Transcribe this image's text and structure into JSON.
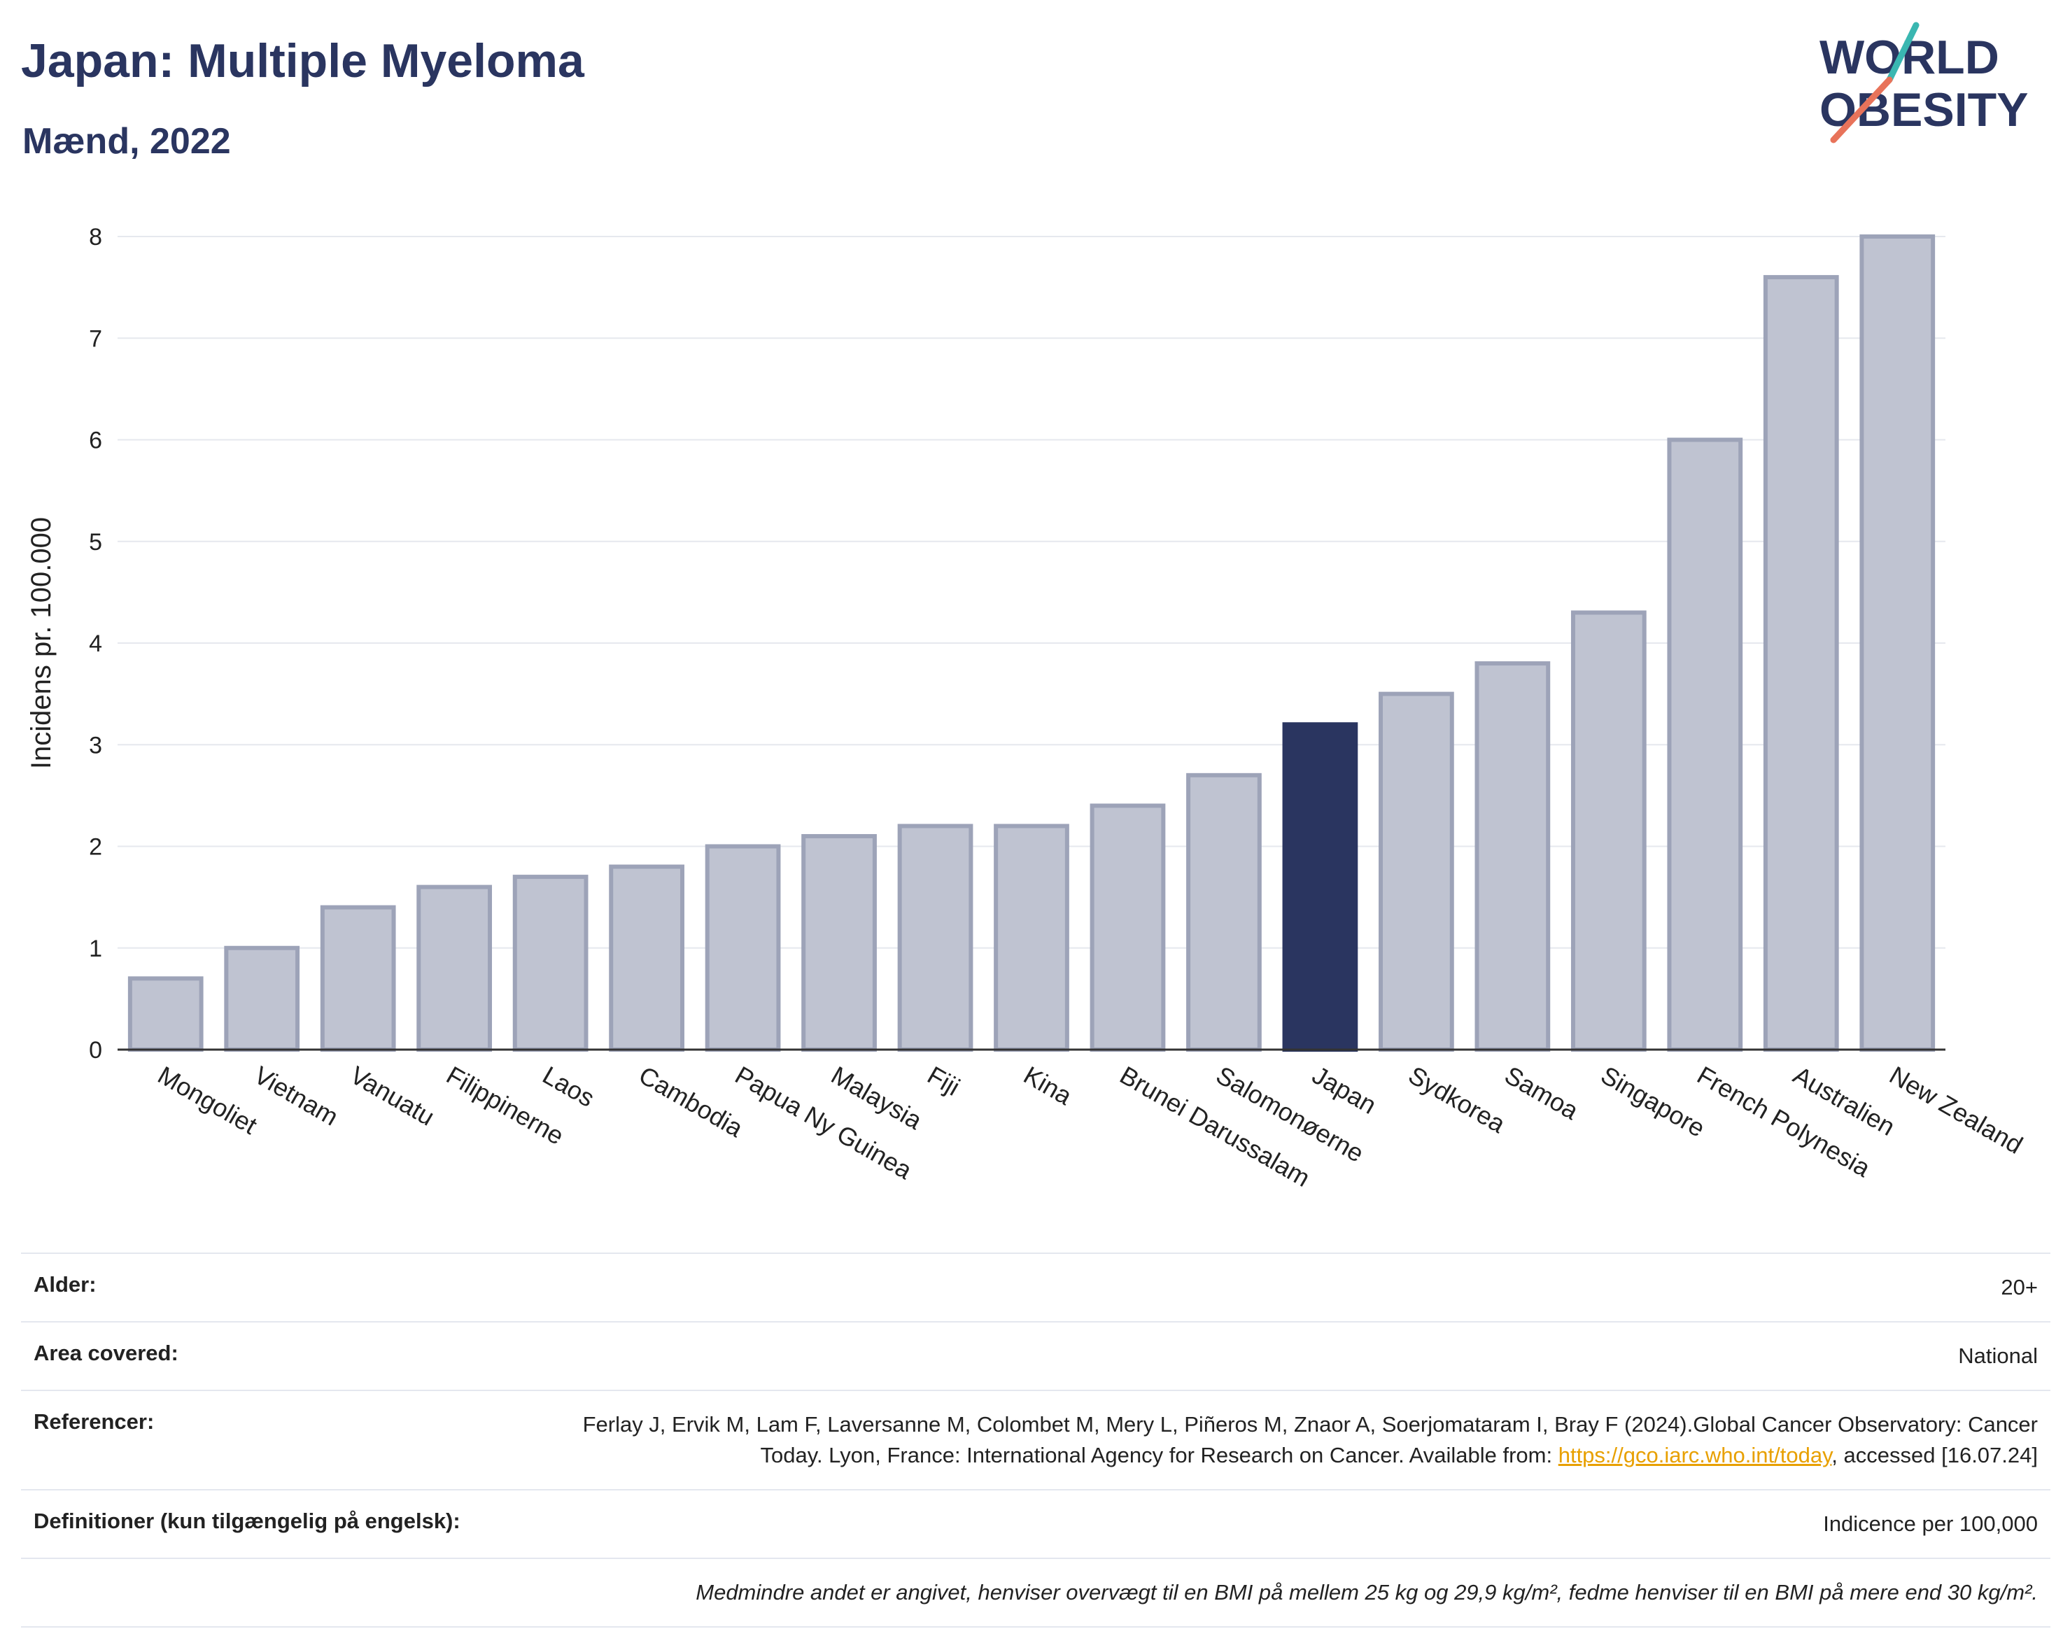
{
  "title": "Japan: Multiple Myeloma",
  "subtitle": "Mænd, 2022",
  "logo": {
    "line1": "WORLD",
    "line2": "OBESITY",
    "accent_colors": [
      "#3ab7b1",
      "#e8735a"
    ]
  },
  "chart_data": {
    "type": "bar",
    "ylabel": "Incidens pr. 100.000",
    "ylim": [
      0,
      8
    ],
    "yticks": [
      0,
      1,
      2,
      3,
      4,
      5,
      6,
      7,
      8
    ],
    "grid": true,
    "categories": [
      "Mongoliet",
      "Vietnam",
      "Vanuatu",
      "Filippinerne",
      "Laos",
      "Cambodia",
      "Papua Ny Guinea",
      "Malaysia",
      "Fiji",
      "Kina",
      "Brunei Darussalam",
      "Salomonøerne",
      "Japan",
      "Sydkorea",
      "Samoa",
      "Singapore",
      "French Polynesia",
      "Australien",
      "New Zealand"
    ],
    "values": [
      0.7,
      1.0,
      1.4,
      1.6,
      1.7,
      1.8,
      2.0,
      2.1,
      2.2,
      2.2,
      2.4,
      2.7,
      3.2,
      3.5,
      3.8,
      4.3,
      6.0,
      7.6,
      8.0
    ],
    "highlight": "Japan",
    "colors": {
      "bar": "#bfc3d1",
      "bar_edge": "#9da3b8",
      "highlight": "#2a3560"
    }
  },
  "info": {
    "age_label": "Alder:",
    "age_value": "20+",
    "area_label": "Area covered:",
    "area_value": "National",
    "refs_label": "Referencer:",
    "refs_text_1": "Ferlay J, Ervik M, Lam F, Laversanne M, Colombet M, Mery L, Piñeros M, Znaor A, Soerjomataram I, Bray F (2024).Global Cancer Observatory: Cancer Today. Lyon, France: International Agency for Research on Cancer. Available from: ",
    "refs_link": "https://gco.iarc.who.int/today",
    "refs_text_2": ", accessed [16.07.24]",
    "def_label": "Definitioner (kun tilgængelig på engelsk):",
    "def_value": "Indicence per 100,000",
    "note": "Medmindre andet er angivet, henviser overvægt til en BMI på mellem 25 kg og 29,9 kg/m², fedme henviser til en BMI på mere end 30 kg/m²."
  }
}
